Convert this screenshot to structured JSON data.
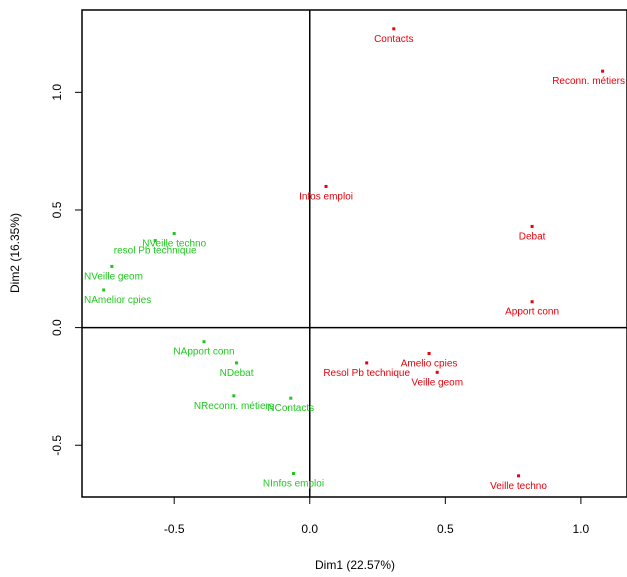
{
  "chart_data": {
    "type": "scatter",
    "title": "",
    "xlabel": "Dim1 (22.57%)",
    "ylabel": "Dim2 (16.35%)",
    "xlim": [
      -0.84,
      1.17
    ],
    "ylim": [
      -0.72,
      1.35
    ],
    "xticks": [
      -0.5,
      0.0,
      0.5,
      1.0
    ],
    "xtick_labels": [
      "-0.5",
      "0.0",
      "0.5",
      "1.0"
    ],
    "yticks": [
      -0.5,
      0.0,
      0.5,
      1.0
    ],
    "ytick_labels": [
      "-0.5",
      "0.0",
      "0.5",
      "1.0"
    ],
    "reference_lines": {
      "x": 0,
      "y": 0
    },
    "grid": false,
    "legend": "none",
    "series": [
      {
        "color": "#e8000b",
        "points": [
          {
            "label": "Contacts",
            "x": 0.31,
            "y": 1.27
          },
          {
            "label": "Reconn. métiers",
            "x": 1.08,
            "y": 1.09
          },
          {
            "label": "Infos emploi",
            "x": 0.06,
            "y": 0.6
          },
          {
            "label": "Debat",
            "x": 0.82,
            "y": 0.43
          },
          {
            "label": "Apport conn",
            "x": 0.82,
            "y": 0.11
          },
          {
            "label": "Amelio cpies",
            "x": 0.44,
            "y": -0.11
          },
          {
            "label": "Resol Pb technique",
            "x": 0.21,
            "y": -0.15
          },
          {
            "label": "Veille geom",
            "x": 0.47,
            "y": -0.19
          },
          {
            "label": "Veille techno",
            "x": 0.77,
            "y": -0.63
          }
        ]
      },
      {
        "color": "#1ec81e",
        "points": [
          {
            "label": "NVeille techno",
            "x": -0.5,
            "y": 0.4
          },
          {
            "label": "resol Pb technique",
            "x": -0.57,
            "y": 0.37
          },
          {
            "label": "NVeille geom",
            "x": -0.73,
            "y": 0.26
          },
          {
            "label": "NAmelior cpies",
            "x": -0.76,
            "y": 0.16
          },
          {
            "label": "NApport conn",
            "x": -0.39,
            "y": -0.06
          },
          {
            "label": "NDebat",
            "x": -0.27,
            "y": -0.15
          },
          {
            "label": "NReconn. métiers",
            "x": -0.28,
            "y": -0.29
          },
          {
            "label": "NContacts",
            "x": -0.07,
            "y": -0.3
          },
          {
            "label": "NInfos emploi",
            "x": -0.06,
            "y": -0.62
          }
        ]
      }
    ]
  }
}
